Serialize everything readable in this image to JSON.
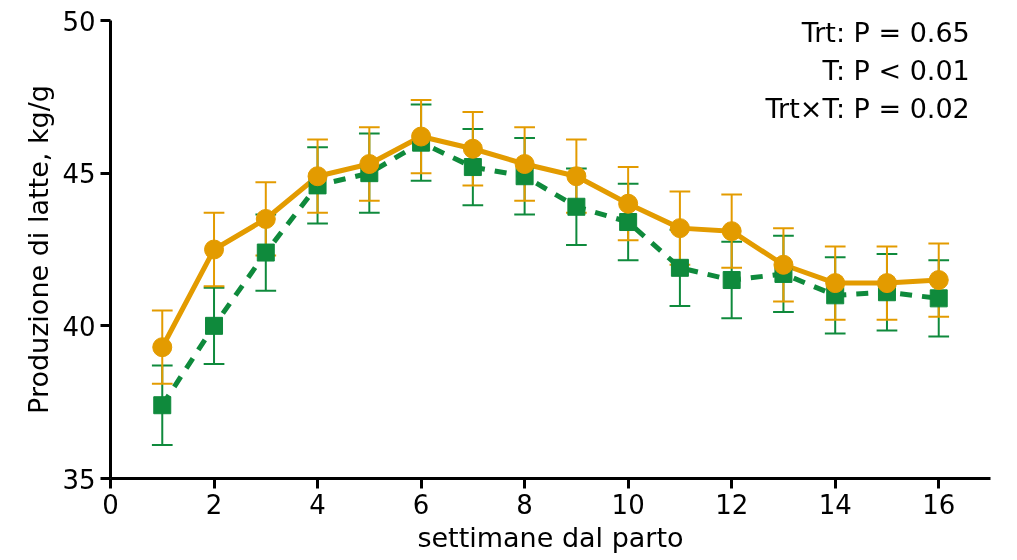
{
  "chart_data": {
    "type": "line",
    "xlabel": "settimane dal parto",
    "ylabel": "Produzione di latte, kg/g",
    "x": [
      1,
      2,
      3,
      4,
      5,
      6,
      7,
      8,
      9,
      10,
      11,
      12,
      13,
      14,
      15,
      16
    ],
    "xlim": [
      0,
      17
    ],
    "xticks": [
      0,
      2,
      4,
      6,
      8,
      10,
      12,
      14,
      16
    ],
    "ylim": [
      35,
      50
    ],
    "yticks": [
      35,
      40,
      45,
      50
    ],
    "grid": false,
    "series": [
      {
        "color": "#0f8a3c",
        "marker": "square",
        "line_style": "dashed",
        "values": [
          37.4,
          40.0,
          42.4,
          44.6,
          45.0,
          46.0,
          45.2,
          44.9,
          43.9,
          43.4,
          41.9,
          41.5,
          41.7,
          41.0,
          41.1,
          40.9
        ],
        "errors": [
          1.3,
          1.25,
          1.25,
          1.25,
          1.3,
          1.25,
          1.25,
          1.25,
          1.25,
          1.25,
          1.25,
          1.25,
          1.25,
          1.25,
          1.25,
          1.25
        ]
      },
      {
        "color": "#e39b00",
        "marker": "circle",
        "line_style": "solid",
        "values": [
          39.3,
          42.5,
          43.5,
          44.9,
          45.3,
          46.2,
          45.8,
          45.3,
          44.9,
          44.0,
          43.2,
          43.1,
          42.0,
          41.4,
          41.4,
          41.5
        ],
        "errors": [
          1.2,
          1.2,
          1.2,
          1.2,
          1.2,
          1.2,
          1.2,
          1.2,
          1.2,
          1.2,
          1.2,
          1.2,
          1.2,
          1.2,
          1.2,
          1.2
        ]
      }
    ],
    "annotations": [
      "Trt: P = 0.65",
      "T: P < 0.01",
      "Trt×T: P = 0.02"
    ]
  }
}
